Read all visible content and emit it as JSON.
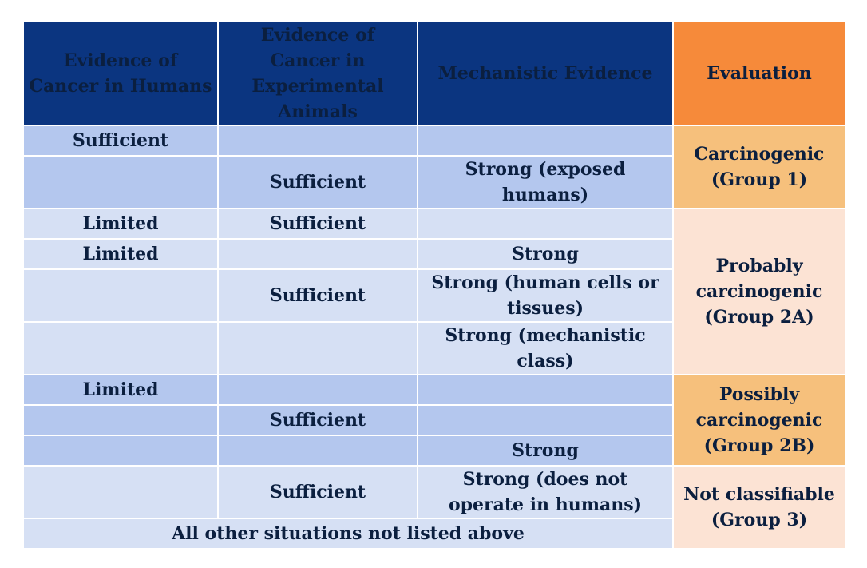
{
  "headers": {
    "humans": "Evidence of Cancer in Humans",
    "animals": "Evidence of Cancer in Experimental Animals",
    "mechanistic": "Mechanistic Evidence",
    "evaluation": "Evaluation"
  },
  "rows": {
    "r1": {
      "humans": "Sufficient",
      "animals": "",
      "mech": ""
    },
    "r2": {
      "humans": "",
      "animals": "Sufficient",
      "mech": "Strong (exposed humans)"
    },
    "r3": {
      "humans": "Limited",
      "animals": "Sufficient",
      "mech": ""
    },
    "r4": {
      "humans": "Limited",
      "animals": "",
      "mech": "Strong"
    },
    "r5": {
      "humans": "",
      "animals": "Sufficient",
      "mech": "Strong (human cells or tissues)"
    },
    "r6": {
      "humans": "",
      "animals": "",
      "mech": "Strong (mechanistic class)"
    },
    "r7": {
      "humans": "Limited",
      "animals": "",
      "mech": ""
    },
    "r8": {
      "humans": "",
      "animals": "Sufficient",
      "mech": ""
    },
    "r9": {
      "humans": "",
      "animals": "",
      "mech": "Strong"
    },
    "r10": {
      "humans": "",
      "animals": "Sufficient",
      "mech": "Strong (does not operate in humans)"
    }
  },
  "footer": "All other situations not listed above",
  "evaluations": {
    "group1": "Carcinogenic (Group 1)",
    "group2a": "Probably carcinogenic (Group 2A)",
    "group2b": "Possibly carcinogenic (Group 2B)",
    "group3": "Not classifiable (Group 3)"
  },
  "colors": {
    "header_bg": "#0b3580",
    "evaluation_header_bg": "#f68a3a",
    "row_dark": "#b4c7ee",
    "row_light": "#d6e0f4",
    "eval_orange": "#f6c07c",
    "eval_peach": "#fce3d4"
  }
}
